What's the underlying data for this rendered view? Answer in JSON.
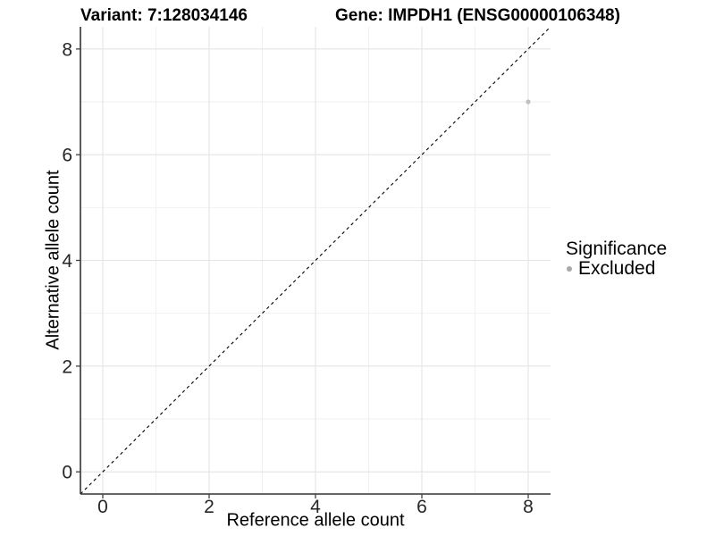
{
  "title": {
    "variant": "Variant: 7:128034146",
    "gene": "Gene: IMPDH1 (ENSG00000106348)"
  },
  "legend": {
    "title": "Significance",
    "items": [
      {
        "label": "Excluded",
        "color": "#a8a8a8"
      }
    ]
  },
  "chart_data": {
    "type": "scatter",
    "title": "Variant: 7:128034146 | Gene: IMPDH1 (ENSG00000106348)",
    "xlabel": "Reference allele count",
    "ylabel": "Alternative allele count",
    "xlim": [
      -0.42,
      8.42
    ],
    "ylim": [
      -0.42,
      8.42
    ],
    "x_ticks": [
      0,
      2,
      4,
      6,
      8
    ],
    "y_ticks": [
      0,
      2,
      4,
      6,
      8
    ],
    "x_minor_gridlines": [
      1,
      3,
      5,
      7
    ],
    "y_minor_gridlines": [
      1,
      3,
      5,
      7
    ],
    "grid": true,
    "legend_position": "right",
    "series": [
      {
        "name": "Excluded",
        "color": "#bfbfbf",
        "marker": "circle",
        "marker_radius": 2.6,
        "points": [
          {
            "x": 8,
            "y": 7
          }
        ]
      }
    ],
    "annotations": [
      {
        "type": "line",
        "equation": "y = x",
        "style": "dashed",
        "color": "#000000"
      }
    ],
    "colors": {
      "axis_line": "#333333",
      "tick": "#404040",
      "tick_label": "#262626",
      "grid_major": "#e4e4e4",
      "grid_minor": "#efefef"
    }
  }
}
